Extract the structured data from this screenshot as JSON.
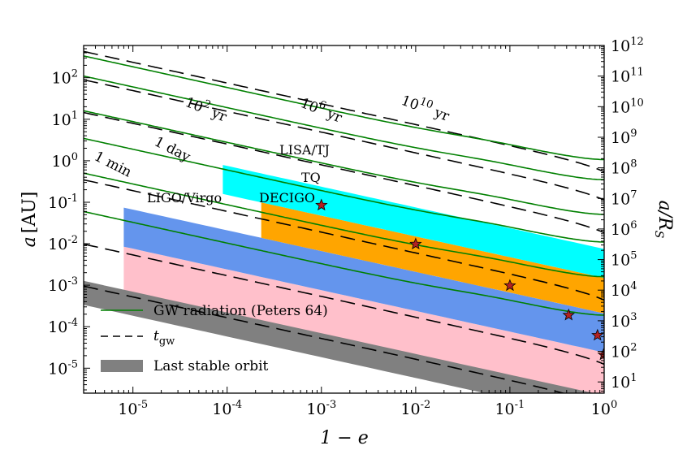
{
  "chart_data": {
    "type": "line",
    "title": "",
    "xscale": "log",
    "yscale": "log",
    "xlim": [
      3e-06,
      1
    ],
    "ylim": [
      2.5e-06,
      600
    ],
    "y2lim": [
      4.3,
      1000000000000.0
    ],
    "xlabel": "1 − e",
    "ylabel_main": "a",
    "ylabel_unit": "[AU]",
    "y2label_main": "a/R",
    "y2label_sub": "S",
    "xticks": [
      {
        "value": 1e-05,
        "base": "10",
        "exp": "-5"
      },
      {
        "value": 0.0001,
        "base": "10",
        "exp": "-4"
      },
      {
        "value": 0.001,
        "base": "10",
        "exp": "-3"
      },
      {
        "value": 0.01,
        "base": "10",
        "exp": "-2"
      },
      {
        "value": 0.1,
        "base": "10",
        "exp": "-1"
      },
      {
        "value": 1,
        "base": "10",
        "exp": "0"
      }
    ],
    "yticks": [
      {
        "value": 1e-05,
        "base": "10",
        "exp": "-5"
      },
      {
        "value": 0.0001,
        "base": "10",
        "exp": "-4"
      },
      {
        "value": 0.001,
        "base": "10",
        "exp": "-3"
      },
      {
        "value": 0.01,
        "base": "10",
        "exp": "-2"
      },
      {
        "value": 0.1,
        "base": "10",
        "exp": "-1"
      },
      {
        "value": 1,
        "base": "10",
        "exp": "0"
      },
      {
        "value": 10,
        "base": "10",
        "exp": "1"
      },
      {
        "value": 100,
        "base": "10",
        "exp": "2"
      }
    ],
    "y2ticks": [
      {
        "value": 10,
        "base": "10",
        "exp": "1"
      },
      {
        "value": 100,
        "base": "10",
        "exp": "2"
      },
      {
        "value": 1000,
        "base": "10",
        "exp": "3"
      },
      {
        "value": 10000.0,
        "base": "10",
        "exp": "4"
      },
      {
        "value": 100000.0,
        "base": "10",
        "exp": "5"
      },
      {
        "value": 1000000.0,
        "base": "10",
        "exp": "6"
      },
      {
        "value": 10000000.0,
        "base": "10",
        "exp": "7"
      },
      {
        "value": 100000000.0,
        "base": "10",
        "exp": "8"
      },
      {
        "value": 1000000000.0,
        "base": "10",
        "exp": "9"
      },
      {
        "value": 10000000000.0,
        "base": "10",
        "exp": "10"
      },
      {
        "value": 100000000000.0,
        "base": "10",
        "exp": "11"
      },
      {
        "value": 1000000000000.0,
        "base": "10",
        "exp": "12"
      }
    ],
    "regions": [
      {
        "name": "LIGO/Virgo",
        "color": "#ffc0cb",
        "x_left": 8e-06,
        "x_right": 1,
        "y_low_at_right": 1.2e-06,
        "y_high_at_right": 2.4e-05,
        "y_top": 0.22
      },
      {
        "name": "DECIGO",
        "color": "#6495ed",
        "x_left": 8e-06,
        "x_right": 1,
        "y_low_at_right": 2.4e-05,
        "y_high_at_right": 0.00021,
        "y_top": 0.22
      },
      {
        "name": "TQ",
        "color": "#ffa500",
        "x_left": 0.00023,
        "x_right": 1,
        "y_low_at_right": 0.00021,
        "y_high_at_right": 0.0015,
        "y_top": 0.55
      },
      {
        "name": "LISA/TJ",
        "color": "#00ffff",
        "x_left": 9e-05,
        "x_right": 1,
        "y_low_at_right": 0.0015,
        "y_high_at_right": 0.0075,
        "y_top": 2.8
      }
    ],
    "last_stable_orbit": {
      "name": "Last stable orbit",
      "color": "#808080",
      "y_low_at_x1": 5.8e-07,
      "y_high_at_x1": 2.2e-06
    },
    "gw_tracks": {
      "name": "GW radiation (Peters 64)",
      "color": "#008000",
      "p_values": [
        0.00019,
        0.0016,
        0.011,
        0.051,
        0.35,
        1.07
      ]
    },
    "tgw_lines": {
      "name": "t_gw",
      "k_values": [
        1.7e-06,
        1.75e-05,
        0.00062,
        0.026,
        0.16,
        0.77
      ],
      "labels": [
        {
          "main": "1 min",
          "exp": "",
          "suffix": ""
        },
        {
          "main": "1 day",
          "exp": "",
          "suffix": ""
        },
        {
          "main": "10",
          "exp": "2",
          "suffix": " yr"
        },
        {
          "main": "10",
          "exp": "6",
          "suffix": " yr"
        },
        {
          "main": "10",
          "exp": "10",
          "suffix": " yr"
        }
      ]
    },
    "stars": [
      {
        "x": 0.001,
        "y": 0.085
      },
      {
        "x": 0.01,
        "y": 0.0098
      },
      {
        "x": 0.1,
        "y": 0.00098
      },
      {
        "x": 0.42,
        "y": 0.00019
      },
      {
        "x": 0.85,
        "y": 6.2e-05
      },
      {
        "x": 0.985,
        "y": 2.1e-05
      }
    ],
    "star_color": "#b22222",
    "legend": {
      "position": "lower-left",
      "entries": [
        {
          "label": "GW radiation (Peters 64)",
          "style": "green-line"
        },
        {
          "label_main": "t",
          "label_sub": "gw",
          "style": "dashed-line"
        },
        {
          "label": "Last stable orbit",
          "style": "gray-patch"
        }
      ]
    }
  }
}
